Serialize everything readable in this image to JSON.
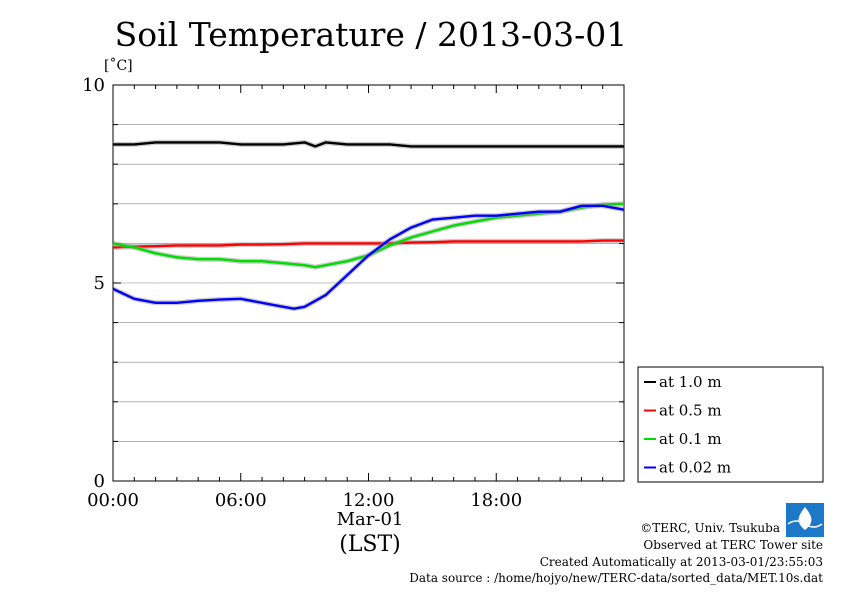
{
  "chart_data": {
    "type": "line",
    "title": "Soil Temperature / 2013-03-01",
    "ylabel": "[˚C]",
    "ylim": [
      0,
      10
    ],
    "yticks": [
      0,
      5,
      10
    ],
    "y_minor_step": 1,
    "xlim": [
      0,
      24
    ],
    "xticks": [
      {
        "value": 0,
        "label": "00:00"
      },
      {
        "value": 6,
        "label": "06:00"
      },
      {
        "value": 12,
        "label": "12:00"
      },
      {
        "value": 18,
        "label": "18:00"
      }
    ],
    "x_date_label": "Mar-01",
    "x_zone_label": "(LST)",
    "grid": true,
    "legend_position": "lower-right, outside plot",
    "series": [
      {
        "name": "at 1.0 m",
        "color": "#000000",
        "x": [
          0,
          1,
          2,
          3,
          4,
          5,
          6,
          7,
          8,
          9,
          9.5,
          10,
          11,
          12,
          13,
          14,
          15,
          16,
          17,
          18,
          19,
          20,
          21,
          22,
          23,
          24
        ],
        "y": [
          8.5,
          8.5,
          8.55,
          8.55,
          8.55,
          8.55,
          8.5,
          8.5,
          8.5,
          8.55,
          8.45,
          8.55,
          8.5,
          8.5,
          8.5,
          8.45,
          8.45,
          8.45,
          8.45,
          8.45,
          8.45,
          8.45,
          8.45,
          8.45,
          8.45,
          8.45
        ]
      },
      {
        "name": "at 0.5 m",
        "color": "#ff0000",
        "x": [
          0,
          1,
          2,
          3,
          4,
          5,
          6,
          7,
          8,
          9,
          10,
          11,
          12,
          13,
          14,
          15,
          16,
          17,
          18,
          19,
          20,
          21,
          22,
          23,
          24
        ],
        "y": [
          5.9,
          5.92,
          5.93,
          5.95,
          5.95,
          5.95,
          5.97,
          5.97,
          5.98,
          6.0,
          6.0,
          6.0,
          6.0,
          6.0,
          6.02,
          6.03,
          6.05,
          6.05,
          6.05,
          6.05,
          6.05,
          6.05,
          6.05,
          6.07,
          6.07
        ]
      },
      {
        "name": "at 0.1 m",
        "color": "#00dd00",
        "x": [
          0,
          1,
          2,
          3,
          4,
          5,
          6,
          7,
          8,
          9,
          9.5,
          10,
          11,
          12,
          13,
          14,
          15,
          16,
          17,
          18,
          19,
          20,
          21,
          22,
          23,
          24
        ],
        "y": [
          6.0,
          5.9,
          5.75,
          5.65,
          5.6,
          5.6,
          5.55,
          5.55,
          5.5,
          5.45,
          5.4,
          5.45,
          5.55,
          5.7,
          5.95,
          6.15,
          6.3,
          6.45,
          6.55,
          6.65,
          6.7,
          6.75,
          6.8,
          6.9,
          6.98,
          7.0
        ]
      },
      {
        "name": "at 0.02 m",
        "color": "#0000ff",
        "x": [
          0,
          1,
          2,
          3,
          4,
          5,
          6,
          7,
          8,
          8.5,
          9,
          10,
          11,
          12,
          13,
          14,
          15,
          16,
          17,
          18,
          19,
          20,
          21,
          22,
          23,
          24
        ],
        "y": [
          4.85,
          4.6,
          4.5,
          4.5,
          4.55,
          4.58,
          4.6,
          4.5,
          4.4,
          4.35,
          4.4,
          4.7,
          5.2,
          5.7,
          6.1,
          6.4,
          6.6,
          6.65,
          6.7,
          6.7,
          6.75,
          6.8,
          6.8,
          6.95,
          6.95,
          6.85
        ]
      }
    ]
  },
  "footer": {
    "copyright": "©TERC, Univ. Tsukuba",
    "observed": "Observed at TERC Tower site",
    "created": "Created Automatically at 2013-03-01/23:55:03",
    "source": "Data source : /home/hojyo/new/TERC-data/sorted_data/MET.10s.dat",
    "logo_text": "TERC"
  }
}
